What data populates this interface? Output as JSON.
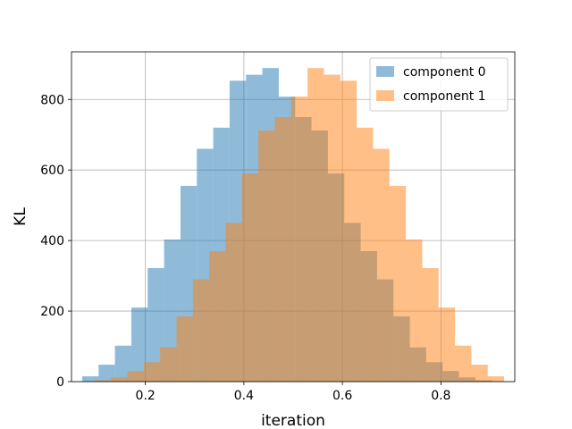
{
  "chart_data": {
    "type": "bar",
    "title": "",
    "xlabel": "iteration",
    "ylabel": "KL",
    "xlim": [
      0.05,
      0.95
    ],
    "ylim": [
      0,
      935
    ],
    "grid": true,
    "legend_position": "top-right",
    "xticks": [
      0.2,
      0.4,
      0.6,
      0.8
    ],
    "yticks": [
      0,
      200,
      400,
      600,
      800
    ],
    "series": [
      {
        "name": "component 0",
        "color": "#1f77b4",
        "opacity": 0.5,
        "bin_edges": [
          0.0717,
          0.105,
          0.1382,
          0.1715,
          0.2047,
          0.238,
          0.2713,
          0.3045,
          0.3378,
          0.371,
          0.4043,
          0.4375,
          0.4708,
          0.5041,
          0.5373,
          0.5706,
          0.6038,
          0.6371,
          0.6703,
          0.7036,
          0.7369,
          0.7701,
          0.8034,
          0.8366,
          0.8699,
          0.9031
        ],
        "counts": [
          15,
          48,
          102,
          210,
          322,
          403,
          555,
          660,
          720,
          853,
          870,
          889,
          808,
          750,
          712,
          590,
          450,
          370,
          290,
          185,
          97,
          55,
          30,
          12,
          4
        ]
      },
      {
        "name": "component 1",
        "color": "#ff7f0e",
        "opacity": 0.5,
        "bin_edges": [
          0.0969,
          0.1302,
          0.1634,
          0.1967,
          0.2299,
          0.2632,
          0.2965,
          0.3297,
          0.363,
          0.3962,
          0.4295,
          0.4627,
          0.496,
          0.5293,
          0.5625,
          0.5958,
          0.629,
          0.6623,
          0.6955,
          0.7288,
          0.7621,
          0.7953,
          0.8286,
          0.8618,
          0.8951,
          0.9283
        ],
        "counts": [
          4,
          12,
          30,
          55,
          97,
          185,
          290,
          370,
          450,
          590,
          712,
          750,
          808,
          889,
          870,
          853,
          720,
          660,
          555,
          403,
          322,
          210,
          102,
          48,
          15
        ]
      }
    ]
  }
}
